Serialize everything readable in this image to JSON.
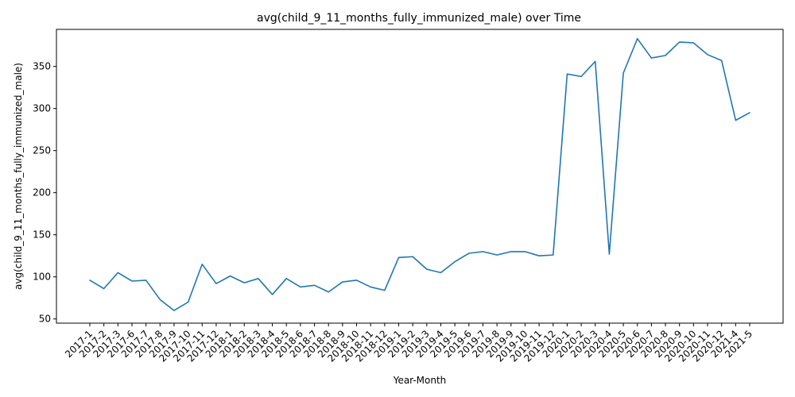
{
  "chart_data": {
    "type": "line",
    "title": "avg(child_9_11_months_fully_immunized_male) over Time",
    "xlabel": "Year-Month",
    "ylabel": "avg(child_9_11_months_fully_immunized_male)",
    "categories": [
      "2017-1",
      "2017-2",
      "2017-3",
      "2017-6",
      "2017-7",
      "2017-8",
      "2017-9",
      "2017-10",
      "2017-11",
      "2017-12",
      "2018-1",
      "2018-2",
      "2018-3",
      "2018-4",
      "2018-5",
      "2018-6",
      "2018-7",
      "2018-8",
      "2018-9",
      "2018-10",
      "2018-11",
      "2018-12",
      "2019-1",
      "2019-2",
      "2019-3",
      "2019-4",
      "2019-5",
      "2019-6",
      "2019-7",
      "2019-8",
      "2019-9",
      "2019-10",
      "2019-11",
      "2019-12",
      "2020-1",
      "2020-2",
      "2020-3",
      "2020-4",
      "2020-5",
      "2020-6",
      "2020-7",
      "2020-8",
      "2020-9",
      "2020-10",
      "2020-11",
      "2020-12",
      "2021-4",
      "2021-5"
    ],
    "series": [
      {
        "values": [
          96,
          86,
          105,
          95,
          96,
          73,
          60,
          70,
          115,
          92,
          101,
          93,
          98,
          79,
          98,
          88,
          90,
          82,
          94,
          96,
          88,
          84,
          123,
          124,
          109,
          105,
          118,
          128,
          130,
          126,
          130,
          130,
          125,
          126,
          341,
          338,
          356,
          127,
          342,
          383,
          360,
          363,
          379,
          378,
          364,
          357,
          286,
          295
        ],
        "color": "#1f77b4"
      }
    ],
    "yticks": [
      50,
      100,
      150,
      200,
      250,
      300,
      350
    ],
    "ylim": [
      45,
      394
    ],
    "grid": false,
    "legend": "none"
  }
}
